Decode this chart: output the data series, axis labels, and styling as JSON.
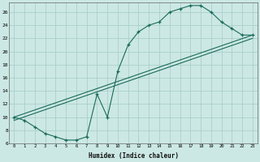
{
  "xlabel": "Humidex (Indice chaleur)",
  "bg_color": "#cce8e4",
  "grid_color": "#aacfcc",
  "line_color": "#1a6b5a",
  "xlim": [
    -0.5,
    23.5
  ],
  "ylim": [
    6,
    27.5
  ],
  "xticks": [
    0,
    1,
    2,
    3,
    4,
    5,
    6,
    7,
    8,
    9,
    10,
    11,
    12,
    13,
    14,
    15,
    16,
    17,
    18,
    19,
    20,
    21,
    22,
    23
  ],
  "yticks": [
    6,
    8,
    10,
    12,
    14,
    16,
    18,
    20,
    22,
    24,
    26
  ],
  "line1_x": [
    0,
    1,
    2,
    3,
    4,
    5,
    6,
    7,
    8,
    9,
    10,
    11,
    12,
    13,
    14,
    15,
    16,
    17,
    18,
    19,
    20,
    21,
    22,
    23
  ],
  "line1_y": [
    10,
    9.5,
    8.5,
    7.5,
    7,
    6.5,
    6.5,
    7,
    13.5,
    10,
    17,
    21,
    23,
    24,
    24.5,
    26,
    26.5,
    27,
    27,
    26,
    24.5,
    23.5,
    22.5,
    22.5
  ],
  "line2_x": [
    0,
    23
  ],
  "line2_y": [
    10,
    22.5
  ],
  "line3_x": [
    0,
    23
  ],
  "line3_y": [
    9.5,
    22
  ]
}
